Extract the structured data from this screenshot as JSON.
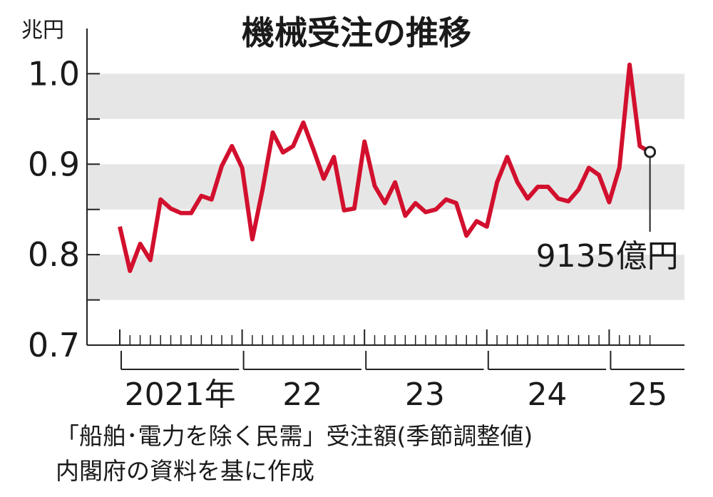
{
  "chart_data": {
    "type": "line",
    "title": "機械受注の推移",
    "y_unit": "兆円",
    "year_labels": [
      "2021年",
      "22",
      "23",
      "24",
      "25"
    ],
    "categories": [
      null,
      null,
      null,
      null,
      null,
      null,
      null,
      null,
      null,
      null,
      null,
      null,
      null,
      null,
      null,
      null,
      null,
      null,
      null,
      null,
      null,
      null,
      null,
      null,
      null,
      null,
      null,
      null,
      null,
      null,
      null,
      null,
      null,
      null,
      null,
      null,
      null,
      null,
      null,
      null,
      null,
      null,
      null,
      null,
      null,
      null,
      null,
      null,
      null,
      null,
      null,
      null,
      null
    ],
    "series": [
      {
        "name": null,
        "color": "#d2102e",
        "values": [
          0.831,
          0.782,
          0.812,
          0.794,
          0.861,
          0.851,
          0.846,
          0.846,
          0.865,
          0.861,
          0.898,
          0.92,
          0.896,
          0.817,
          0.872,
          0.935,
          0.913,
          0.92,
          0.946,
          0.916,
          0.884,
          0.908,
          0.849,
          0.851,
          0.925,
          0.876,
          0.857,
          0.88,
          0.843,
          0.857,
          0.847,
          0.85,
          0.861,
          0.857,
          0.821,
          0.837,
          0.831,
          0.88,
          0.908,
          0.88,
          0.862,
          0.875,
          0.875,
          0.862,
          0.859,
          0.872,
          0.896,
          0.888,
          0.858,
          0.896,
          1.01,
          0.92,
          0.9135
        ],
        "value_labels": [
          null,
          null,
          null,
          null,
          null,
          null,
          null,
          null,
          null,
          null,
          null,
          null,
          null,
          null,
          null,
          null,
          null,
          null,
          null,
          null,
          null,
          null,
          null,
          null,
          null,
          null,
          null,
          null,
          null,
          null,
          null,
          null,
          null,
          null,
          null,
          null,
          null,
          null,
          null,
          null,
          null,
          null,
          null,
          null,
          null,
          null,
          null,
          null,
          null,
          null,
          null,
          null,
          "9135億円"
        ]
      }
    ],
    "ylim": [
      0.7,
      1.05
    ],
    "yticks": [
      0.7,
      0.8,
      0.9,
      {
        "value": 1.0,
        "label": "1.0"
      }
    ],
    "yminor_ticks": [
      0.75,
      0.85,
      0.95
    ],
    "bands": true,
    "notes": [
      "「船舶･電力を除く民需」受注額(季節調整値)",
      "内閣府の資料を基に作成"
    ]
  }
}
